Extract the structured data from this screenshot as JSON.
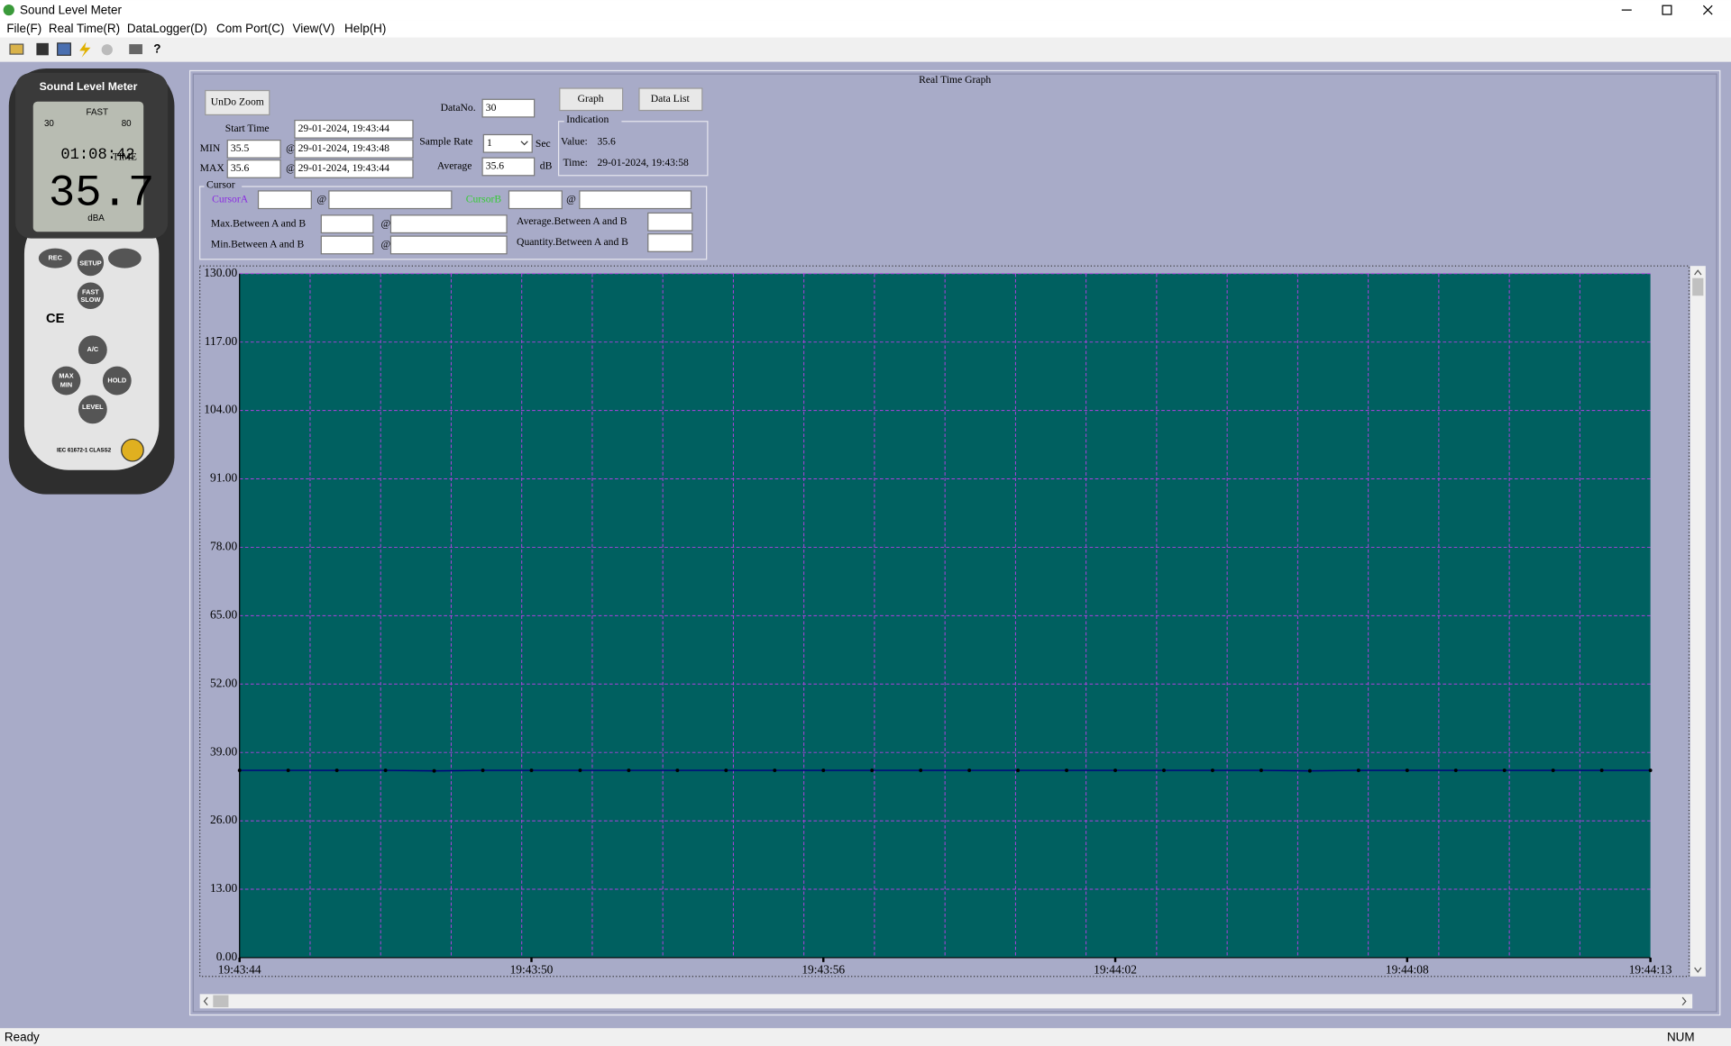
{
  "window": {
    "title": "Sound Level Meter"
  },
  "menu": [
    "File(F)",
    "Real Time(R)",
    "DataLogger(D)",
    "Com Port(C)",
    "View(V)",
    "Help(H)"
  ],
  "device": {
    "brand": "Sound Level Meter",
    "mode": "FAST",
    "range_low": "30",
    "range_high": "80",
    "clock": "01:08:42",
    "clock_unit": "TIME",
    "reading": "35.7",
    "unit": "dBA",
    "rec": "REC",
    "setup": "SETUP",
    "fast": "FAST",
    "slow": "SLOW",
    "ac": "A/C",
    "max": "MAX",
    "min": "MIN",
    "hold": "HOLD",
    "level": "LEVEL",
    "ce": "CE",
    "standard": "IEC 61672-1 CLASS2"
  },
  "panel": {
    "title": "Real Time Graph",
    "undo_zoom": "UnDo Zoom",
    "start_time_label": "Start Time",
    "start_time": "29-01-2024, 19:43:44",
    "min_label": "MIN",
    "min_value": "35.5",
    "at": "@",
    "min_time": "29-01-2024, 19:43:48",
    "max_label": "MAX",
    "max_value": "35.6",
    "max_time": "29-01-2024, 19:43:44",
    "data_no_label": "DataNo.",
    "data_no": "30",
    "sample_rate_label": "Sample Rate",
    "sample_rate": "1",
    "sample_rate_unit": "Sec",
    "average_label": "Average",
    "average": "35.6",
    "average_unit": "dB",
    "graph_button": "Graph",
    "data_list_button": "Data List",
    "indication": {
      "title": "Indication",
      "value_label": "Value:",
      "value": "35.6",
      "time_label": "Time:",
      "time": "29-01-2024, 19:43:58"
    }
  },
  "cursor": {
    "title": "Cursor",
    "cursor_a": "CursorA",
    "cursor_b": "CursorB",
    "max_between": "Max.Between A and B",
    "min_between": "Min.Between A and B",
    "average_between": "Average.Between A and B",
    "quantity_between": "Quantity.Between A and B"
  },
  "status": {
    "left": "Ready",
    "right": "NUM"
  },
  "chart_data": {
    "type": "line",
    "x": [
      "19:43:44",
      "19:43:45",
      "19:43:46",
      "19:43:47",
      "19:43:48",
      "19:43:49",
      "19:43:50",
      "19:43:51",
      "19:43:52",
      "19:43:53",
      "19:43:54",
      "19:43:55",
      "19:43:56",
      "19:43:57",
      "19:43:58",
      "19:43:59",
      "19:44:00",
      "19:44:01",
      "19:44:02",
      "19:44:03",
      "19:44:04",
      "19:44:05",
      "19:44:06",
      "19:44:07",
      "19:44:08",
      "19:44:09",
      "19:44:10",
      "19:44:11",
      "19:44:12",
      "19:44:13"
    ],
    "values": [
      35.6,
      35.6,
      35.6,
      35.6,
      35.5,
      35.6,
      35.6,
      35.6,
      35.6,
      35.6,
      35.6,
      35.6,
      35.6,
      35.6,
      35.6,
      35.6,
      35.6,
      35.6,
      35.6,
      35.6,
      35.6,
      35.6,
      35.5,
      35.6,
      35.6,
      35.6,
      35.6,
      35.6,
      35.6,
      35.6
    ],
    "color": "#000080",
    "marker_color": "#000000",
    "background": "#006060",
    "grid_color": "#b040e0",
    "grid": true,
    "xlim": [
      "19:43:44",
      "19:44:13"
    ],
    "xticks": [
      "19:43:44",
      "19:43:50",
      "19:43:56",
      "19:44:02",
      "19:44:08",
      "19:44:13"
    ],
    "ylim": [
      0,
      130
    ],
    "yticks": [
      {
        "value": 0,
        "label": "0.00"
      },
      {
        "value": 13,
        "label": "13.00"
      },
      {
        "value": 26,
        "label": "26.00"
      },
      {
        "value": 39,
        "label": "39.00"
      },
      {
        "value": 52,
        "label": "52.00"
      },
      {
        "value": 65,
        "label": "65.00"
      },
      {
        "value": 78,
        "label": "78.00"
      },
      {
        "value": 91,
        "label": "91.00"
      },
      {
        "value": 104,
        "label": "104.00"
      },
      {
        "value": 117,
        "label": "117.00"
      },
      {
        "value": 130,
        "label": "130.00"
      }
    ]
  }
}
